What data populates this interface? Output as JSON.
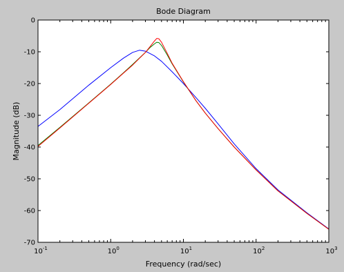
{
  "chart_data": {
    "type": "line",
    "title": "Bode Diagram",
    "xlabel": "Frequency  (rad/sec)",
    "ylabel": "Magnitude (dB)",
    "xscale": "log",
    "xlim": [
      0.1,
      1000
    ],
    "ylim": [
      -70,
      0
    ],
    "grid": false,
    "legend": "none",
    "x_ticks": [
      {
        "value": 0.1,
        "base": "10",
        "exp": "-1"
      },
      {
        "value": 1,
        "base": "10",
        "exp": "0"
      },
      {
        "value": 10,
        "base": "10",
        "exp": "1"
      },
      {
        "value": 100,
        "base": "10",
        "exp": "2"
      },
      {
        "value": 1000,
        "base": "10",
        "exp": "3"
      }
    ],
    "y_ticks": [
      "0",
      "-10",
      "-20",
      "-30",
      "-40",
      "-50",
      "-60",
      "-70"
    ],
    "series": [
      {
        "color": "#0000ff",
        "x": [
          0.1,
          0.2,
          0.5,
          1,
          1.5,
          2,
          2.5,
          3,
          4,
          5,
          7,
          10,
          15,
          20,
          30,
          50,
          100,
          200,
          500,
          1000
        ],
        "y": [
          -33.5,
          -28.2,
          -20.5,
          -15.0,
          -12.0,
          -10.2,
          -9.5,
          -9.8,
          -11.3,
          -13.0,
          -16.3,
          -20.0,
          -24.5,
          -27.8,
          -32.7,
          -39.0,
          -46.8,
          -53.5,
          -60.7,
          -65.8
        ]
      },
      {
        "color": "#008000",
        "x": [
          0.1,
          0.2,
          0.5,
          1,
          1.5,
          2,
          2.5,
          3,
          3.5,
          4,
          4.3,
          4.6,
          5,
          6,
          7,
          10,
          15,
          20,
          30,
          50,
          100,
          200,
          500,
          1000
        ],
        "y": [
          -39.5,
          -33.8,
          -26.1,
          -20.2,
          -16.6,
          -14.0,
          -11.9,
          -10.2,
          -8.6,
          -7.5,
          -7.0,
          -7.1,
          -8.0,
          -11.0,
          -13.8,
          -19.5,
          -25.5,
          -29.3,
          -34.2,
          -40.0,
          -47.2,
          -53.8,
          -60.9,
          -65.9
        ]
      },
      {
        "color": "#ff0000",
        "x": [
          0.1,
          0.2,
          0.5,
          1,
          1.5,
          2,
          2.5,
          3,
          3.5,
          4,
          4.3,
          4.6,
          5,
          6,
          7,
          10,
          15,
          20,
          30,
          50,
          100,
          200,
          500,
          1000
        ],
        "y": [
          -39.8,
          -34.0,
          -26.2,
          -20.3,
          -16.7,
          -14.2,
          -12.0,
          -10.2,
          -8.3,
          -6.6,
          -5.8,
          -5.9,
          -7.0,
          -10.5,
          -13.6,
          -19.4,
          -25.5,
          -29.3,
          -34.2,
          -40.0,
          -47.2,
          -53.8,
          -60.9,
          -65.9
        ]
      }
    ]
  }
}
